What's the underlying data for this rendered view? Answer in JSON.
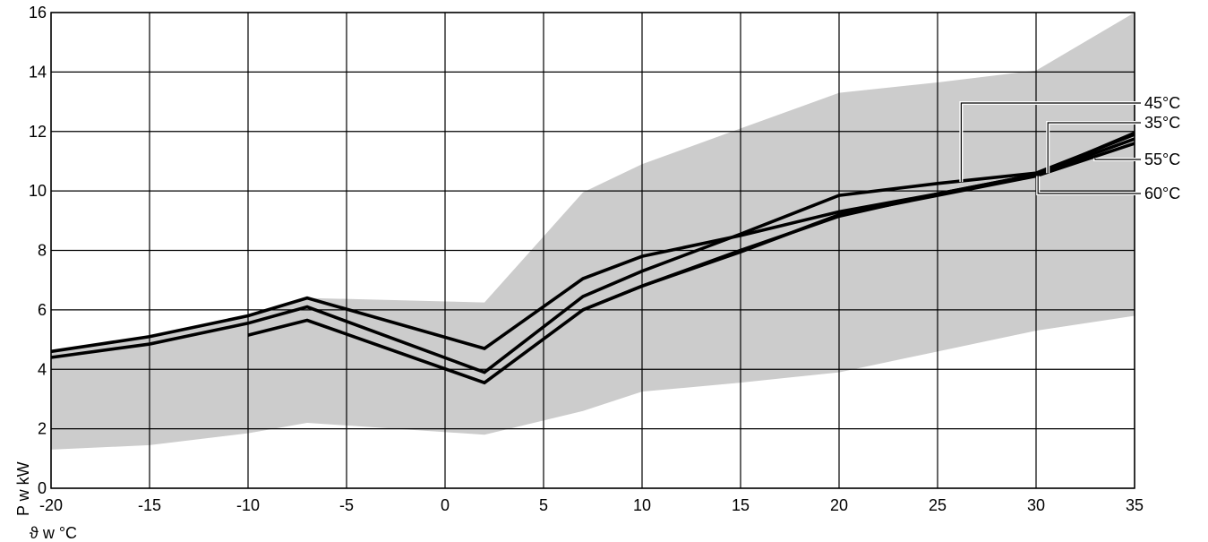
{
  "chart_data": {
    "type": "line",
    "title": "",
    "xlabel": "ϑ w °C",
    "ylabel": "P w kW",
    "xlim": [
      -20,
      35
    ],
    "ylim": [
      0,
      16
    ],
    "xticks": [
      -20,
      -15,
      -10,
      -5,
      0,
      5,
      10,
      15,
      20,
      25,
      30,
      35
    ],
    "yticks": [
      0,
      2,
      4,
      6,
      8,
      10,
      12,
      14,
      16
    ],
    "grid": true,
    "band": {
      "upper": [
        [
          -20,
          4.6
        ],
        [
          -15,
          5.1
        ],
        [
          -10,
          5.8
        ],
        [
          -7,
          6.4
        ],
        [
          2,
          6.25
        ],
        [
          7,
          9.95
        ],
        [
          10,
          10.9
        ],
        [
          15,
          12.1
        ],
        [
          20,
          13.3
        ],
        [
          25,
          13.65
        ],
        [
          30,
          14.05
        ],
        [
          35,
          16.0
        ]
      ],
      "lower": [
        [
          -20,
          1.3
        ],
        [
          -15,
          1.45
        ],
        [
          -10,
          1.85
        ],
        [
          -7,
          2.2
        ],
        [
          2,
          1.8
        ],
        [
          7,
          2.6
        ],
        [
          10,
          3.25
        ],
        [
          15,
          3.55
        ],
        [
          20,
          3.9
        ],
        [
          25,
          4.6
        ],
        [
          30,
          5.3
        ],
        [
          35,
          5.8
        ]
      ]
    },
    "series": [
      {
        "name": "35°C",
        "points": [
          [
            -20,
            4.6
          ],
          [
            -15,
            5.1
          ],
          [
            -10,
            5.8
          ],
          [
            -7,
            6.4
          ],
          [
            2,
            4.7
          ],
          [
            7,
            7.05
          ],
          [
            10,
            7.8
          ],
          [
            15,
            8.5
          ],
          [
            20,
            9.3
          ],
          [
            25,
            9.9
          ],
          [
            30,
            10.55
          ],
          [
            35,
            11.95
          ]
        ]
      },
      {
        "name": "45°C",
        "points": [
          [
            -20,
            4.4
          ],
          [
            -15,
            4.85
          ],
          [
            -10,
            5.55
          ],
          [
            -7,
            6.1
          ],
          [
            2,
            3.9
          ],
          [
            7,
            6.45
          ],
          [
            10,
            7.3
          ],
          [
            15,
            8.55
          ],
          [
            20,
            9.85
          ],
          [
            25,
            10.25
          ],
          [
            30,
            10.6
          ],
          [
            35,
            11.9
          ]
        ]
      },
      {
        "name": "55°C",
        "points": [
          [
            -10,
            5.15
          ],
          [
            -7,
            5.65
          ],
          [
            2,
            3.55
          ],
          [
            7,
            6.0
          ],
          [
            10,
            6.8
          ],
          [
            15,
            7.95
          ],
          [
            20,
            9.2
          ],
          [
            25,
            9.85
          ],
          [
            30,
            10.5
          ],
          [
            35,
            11.6
          ]
        ]
      },
      {
        "name": "60°C",
        "points": [
          [
            7,
            6.0
          ],
          [
            10,
            6.8
          ],
          [
            15,
            8.0
          ],
          [
            20,
            9.15
          ],
          [
            25,
            9.9
          ],
          [
            30,
            10.55
          ],
          [
            35,
            11.75
          ]
        ]
      }
    ],
    "legend": [
      {
        "label": "45°C",
        "target": [
          26,
          10.3
        ]
      },
      {
        "label": "35°C",
        "target": [
          30.5,
          10.6
        ]
      },
      {
        "label": "55°C",
        "target": [
          32.5,
          11.1
        ]
      },
      {
        "label": "60°C",
        "target": [
          30.2,
          10.5
        ]
      }
    ]
  }
}
